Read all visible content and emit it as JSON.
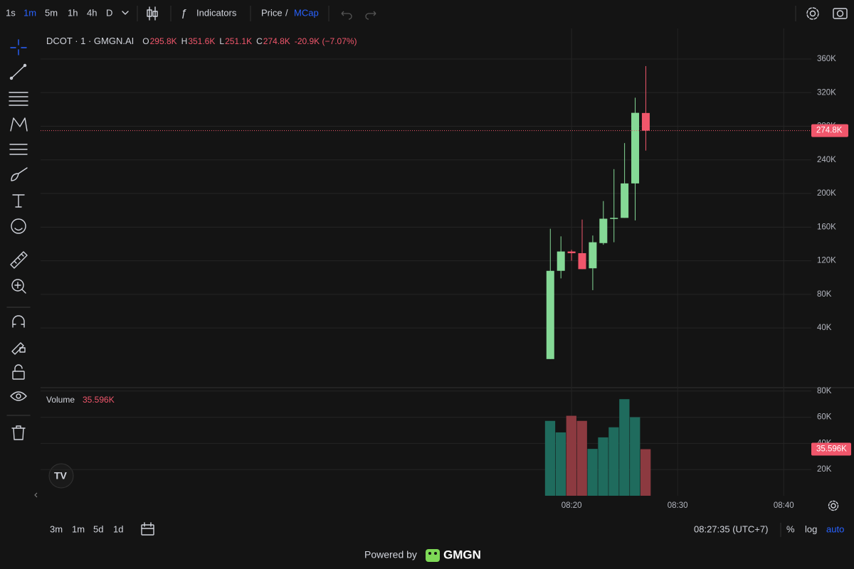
{
  "toolbar": {
    "intervals": [
      "1s",
      "1m",
      "5m",
      "1h",
      "4h",
      "D"
    ],
    "active_interval": 1,
    "indicators": "Indicators",
    "price": "Price",
    "separator": "/",
    "mcap": "MCap"
  },
  "legend": {
    "symbol": "DCOT · 1 · GMGN.AI",
    "ohlc": [
      {
        "key": "O",
        "value": "295.8K"
      },
      {
        "key": "H",
        "value": "351.6K"
      },
      {
        "key": "L",
        "value": "251.1K"
      },
      {
        "key": "C",
        "value": "274.8K"
      }
    ],
    "change": "-20.9K (−7.07%)"
  },
  "chart_data": {
    "type": "candlestick",
    "categories": [
      null,
      null,
      "08:20",
      null,
      null,
      null,
      null,
      null,
      null,
      null
    ],
    "open": [
      3,
      108,
      131,
      129,
      111,
      141,
      170,
      171,
      212,
      295.8
    ],
    "high": [
      158,
      149,
      133,
      169,
      150,
      191,
      229,
      260,
      314,
      351.6
    ],
    "low": [
      3,
      99,
      120,
      110,
      85,
      139,
      142,
      171,
      168,
      251.1
    ],
    "close": [
      108,
      131,
      129,
      110,
      142,
      170,
      171,
      212,
      296,
      274.8
    ],
    "up_color": "#85d996",
    "down_color": "#f0566b",
    "ylim": [
      -31,
      396.4
    ],
    "yticks": [
      {
        "value": 40,
        "label": "40K"
      },
      {
        "value": 80,
        "label": "80K"
      },
      {
        "value": 120,
        "label": "120K"
      },
      {
        "value": 160,
        "label": "160K"
      },
      {
        "value": 200,
        "label": "200K"
      },
      {
        "value": 240,
        "label": "240K"
      },
      {
        "value": 280,
        "label": "280K"
      },
      {
        "value": 320,
        "label": "320K"
      },
      {
        "value": 360,
        "label": "360K"
      }
    ],
    "last_label": "274.8K",
    "xlim": [
      -48.05,
      24.6
    ],
    "xticks": [
      {
        "value": 2,
        "label": "08:20"
      },
      {
        "value": 12,
        "label": "08:30"
      },
      {
        "value": 22,
        "label": "08:40"
      }
    ],
    "volume": {
      "title": "Volume",
      "values": [
        57.2,
        48.4,
        61.1,
        57.2,
        35.8,
        44.6,
        52.3,
        73.8,
        60,
        35.596
      ],
      "value_label": "35.596K",
      "up_color": "#1f6b5d",
      "down_color": "#8c3a40",
      "ylim": [
        0,
        82.6
      ],
      "yticks": [
        {
          "value": 20,
          "label": "20K"
        },
        {
          "value": 40,
          "label": "40K"
        },
        {
          "value": 60,
          "label": "60K"
        },
        {
          "value": 80,
          "label": "80K"
        }
      ]
    },
    "grid": true
  },
  "bottom": {
    "ranges": [
      "3m",
      "1m",
      "5d",
      "1d"
    ],
    "clock": "08:27:35 (UTC+7)",
    "scale_options": [
      "%",
      "log",
      "auto"
    ],
    "active_scale": 2
  },
  "footer": {
    "powered_by": "Powered by",
    "brand": "GMGN"
  }
}
